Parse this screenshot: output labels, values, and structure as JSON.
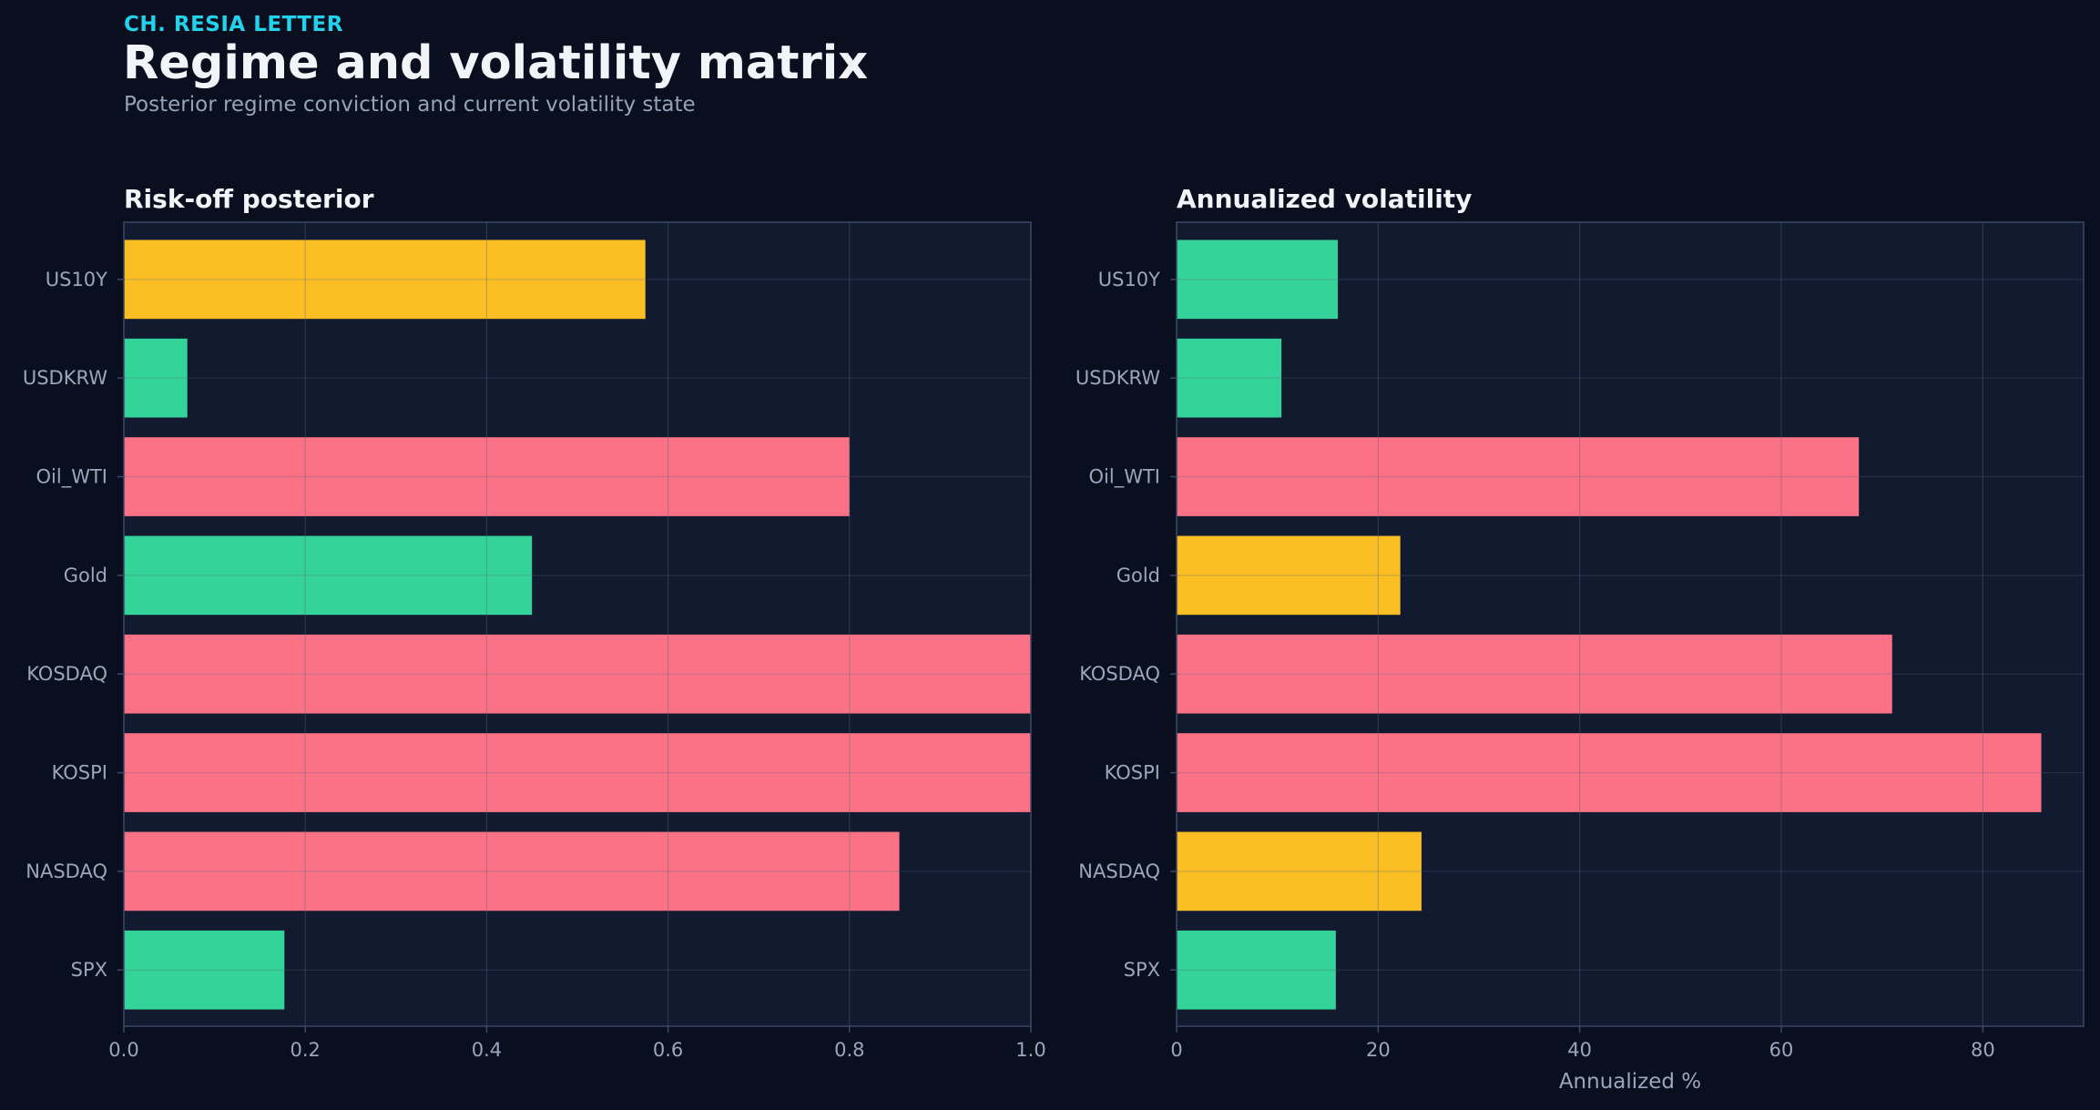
{
  "header": {
    "kicker": "CH. RESIA LETTER",
    "title": "Regime and volatility matrix",
    "subtitle": "Posterior regime conviction and current volatility state"
  },
  "colors": {
    "page_bg": "#0a0f1f",
    "panel_bg": "#111a2e",
    "panel_border": "#3b4866",
    "grid": "#25314a",
    "tick_text": "#9aa6bd",
    "title_text": "#f1f5f9",
    "red": "#fb7185",
    "green": "#34d399",
    "yellow": "#fbbf24"
  },
  "chart_data": [
    {
      "type": "bar",
      "orientation": "horizontal",
      "title": "Risk-off posterior",
      "xlabel": "",
      "ylabel": "",
      "xlim": [
        0,
        1
      ],
      "xticks": [
        0.0,
        0.2,
        0.4,
        0.6,
        0.8,
        1.0
      ],
      "xtick_labels": [
        "0.0",
        "0.2",
        "0.4",
        "0.6",
        "0.8",
        "1.0"
      ],
      "grid": true,
      "categories": [
        "US10Y",
        "USDKRW",
        "Oil_WTI",
        "Gold",
        "KOSDAQ",
        "KOSPI",
        "NASDAQ",
        "SPX"
      ],
      "values": [
        0.575,
        0.07,
        0.8,
        0.45,
        1.0,
        1.0,
        0.855,
        0.177
      ],
      "bar_colors": [
        "yellow",
        "green",
        "red",
        "green",
        "red",
        "red",
        "red",
        "green"
      ]
    },
    {
      "type": "bar",
      "orientation": "horizontal",
      "title": "Annualized volatility",
      "xlabel": "Annualized %",
      "ylabel": "",
      "xlim": [
        0,
        90
      ],
      "xticks": [
        0,
        20,
        40,
        60,
        80
      ],
      "xtick_labels": [
        "0",
        "20",
        "40",
        "60",
        "80"
      ],
      "grid": true,
      "categories": [
        "US10Y",
        "USDKRW",
        "Oil_WTI",
        "Gold",
        "KOSDAQ",
        "KOSPI",
        "NASDAQ",
        "SPX"
      ],
      "values": [
        16.0,
        10.4,
        67.7,
        22.2,
        71.0,
        85.8,
        24.3,
        15.8
      ],
      "bar_colors": [
        "green",
        "green",
        "red",
        "yellow",
        "red",
        "red",
        "yellow",
        "green"
      ]
    }
  ]
}
